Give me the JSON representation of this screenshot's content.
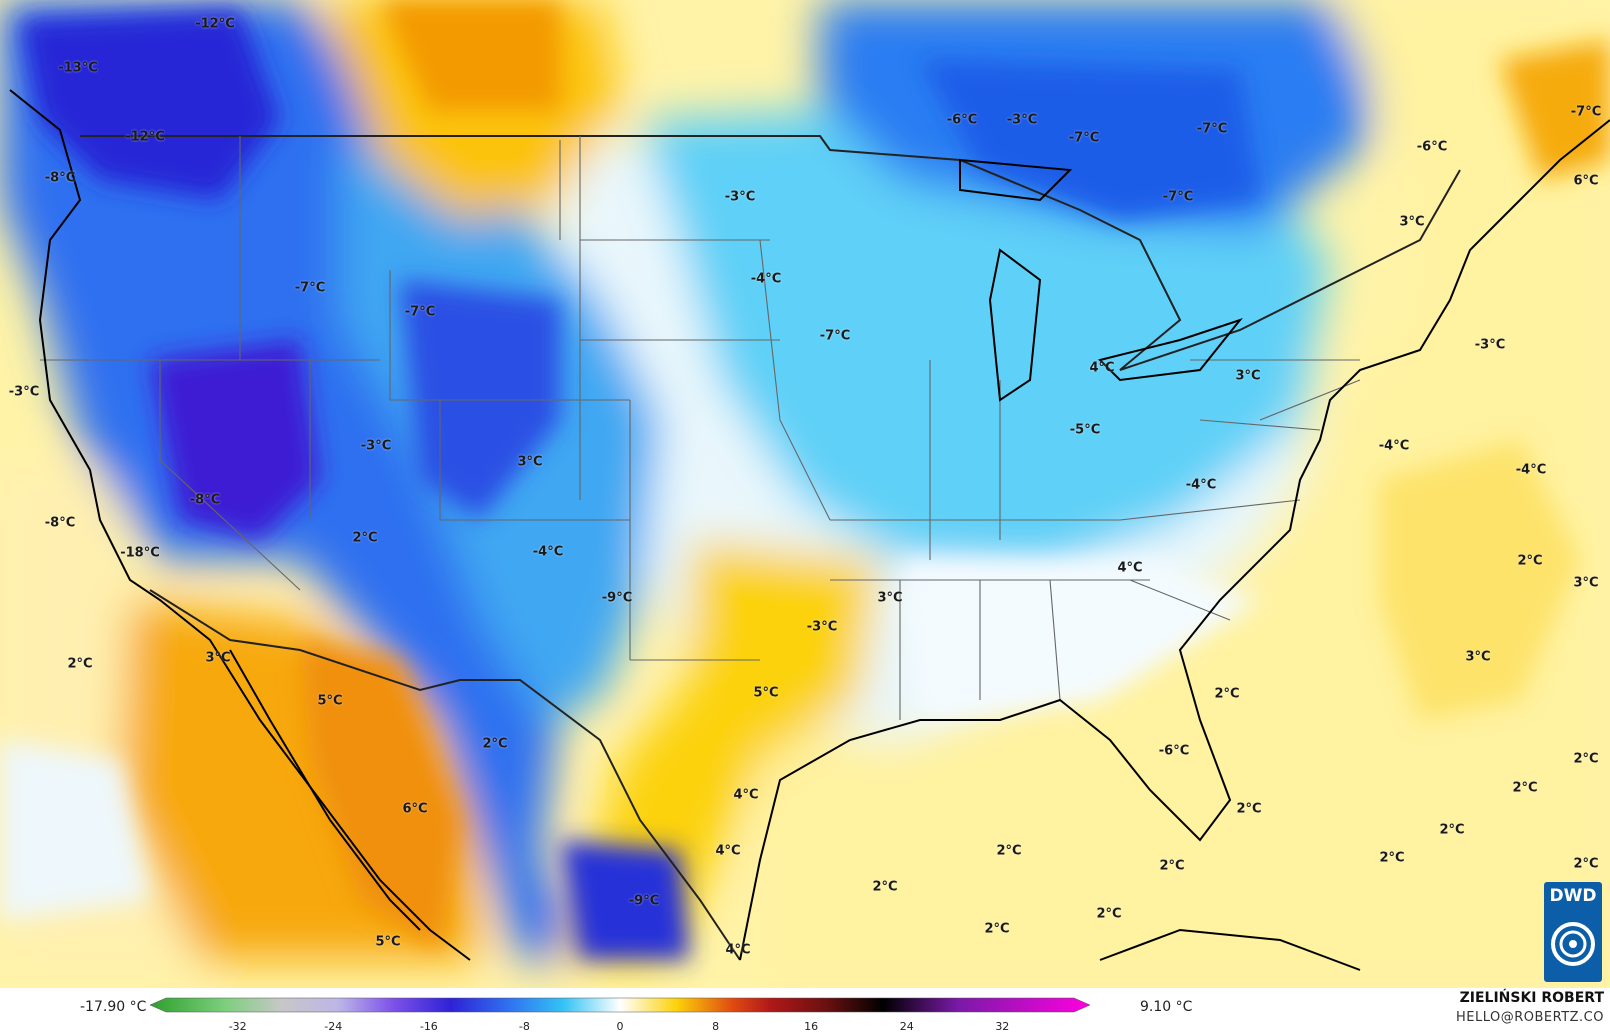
{
  "map": {
    "labels": [
      {
        "text": "-12°C"
      },
      {
        "text": "-13°C"
      },
      {
        "text": "-12°C"
      },
      {
        "text": "-8°C"
      },
      {
        "text": "-3°C"
      },
      {
        "text": "-7°C"
      },
      {
        "text": "-7°C"
      },
      {
        "text": "-6°C"
      },
      {
        "text": "-3°C"
      },
      {
        "text": "-3°C"
      },
      {
        "text": "-4°C"
      },
      {
        "text": "-7°C"
      },
      {
        "text": "-7°C"
      },
      {
        "text": "-7°C"
      },
      {
        "text": "-7°C"
      },
      {
        "text": "-6°C"
      },
      {
        "text": "6°C"
      },
      {
        "text": "3°C"
      },
      {
        "text": "4°C"
      },
      {
        "text": "3°C"
      },
      {
        "text": "-3°C"
      },
      {
        "text": "-3°C"
      },
      {
        "text": "3°C"
      },
      {
        "text": "-8°C"
      },
      {
        "text": "-8°C"
      },
      {
        "text": "-18°C"
      },
      {
        "text": "2°C"
      },
      {
        "text": "-4°C"
      },
      {
        "text": "-9°C"
      },
      {
        "text": "-7°C"
      },
      {
        "text": "-5°C"
      },
      {
        "text": "-4°C"
      },
      {
        "text": "-4°C"
      },
      {
        "text": "-4°C"
      },
      {
        "text": "4°C"
      },
      {
        "text": "3°C"
      },
      {
        "text": "-3°C"
      },
      {
        "text": "2°C"
      },
      {
        "text": "3°C"
      },
      {
        "text": "3°C"
      },
      {
        "text": "3°C"
      },
      {
        "text": "2°C"
      },
      {
        "text": "5°C"
      },
      {
        "text": "5°C"
      },
      {
        "text": "2°C"
      },
      {
        "text": "2°C"
      },
      {
        "text": "-6°C"
      },
      {
        "text": "6°C"
      },
      {
        "text": "4°C"
      },
      {
        "text": "4°C"
      },
      {
        "text": "2°C"
      },
      {
        "text": "2°C"
      },
      {
        "text": "2°C"
      },
      {
        "text": "2°C"
      },
      {
        "text": "2°C"
      },
      {
        "text": "2°C"
      },
      {
        "text": "2°C"
      },
      {
        "text": "2°C"
      },
      {
        "text": "-9°C"
      },
      {
        "text": "5°C"
      },
      {
        "text": "4°C"
      },
      {
        "text": "2°C"
      },
      {
        "text": "2°C"
      },
      {
        "text": "2°C"
      },
      {
        "text": "2°C"
      }
    ]
  },
  "legend": {
    "min_value": "-17.90 °C",
    "max_value": "9.10 °C",
    "ticks": [
      "-32",
      "-24",
      "-16",
      "-8",
      "0",
      "8",
      "16",
      "24",
      "32"
    ]
  },
  "author": {
    "name": "ZIELIŃSKI ROBERT",
    "email": "HELLO@ROBERTZ.CO"
  },
  "logo": {
    "text": "DWD"
  },
  "colors": {
    "deep_blue": "#1f2fd6",
    "blue": "#2f6ff0",
    "light_blue": "#35c3f5",
    "pale_blue": "#a9e4f7",
    "white": "#f8fbff",
    "pale_yellow": "#fff3a8",
    "yellow": "#fcd20a",
    "orange": "#f59a06",
    "logo_blue": "#0d5ea8"
  }
}
